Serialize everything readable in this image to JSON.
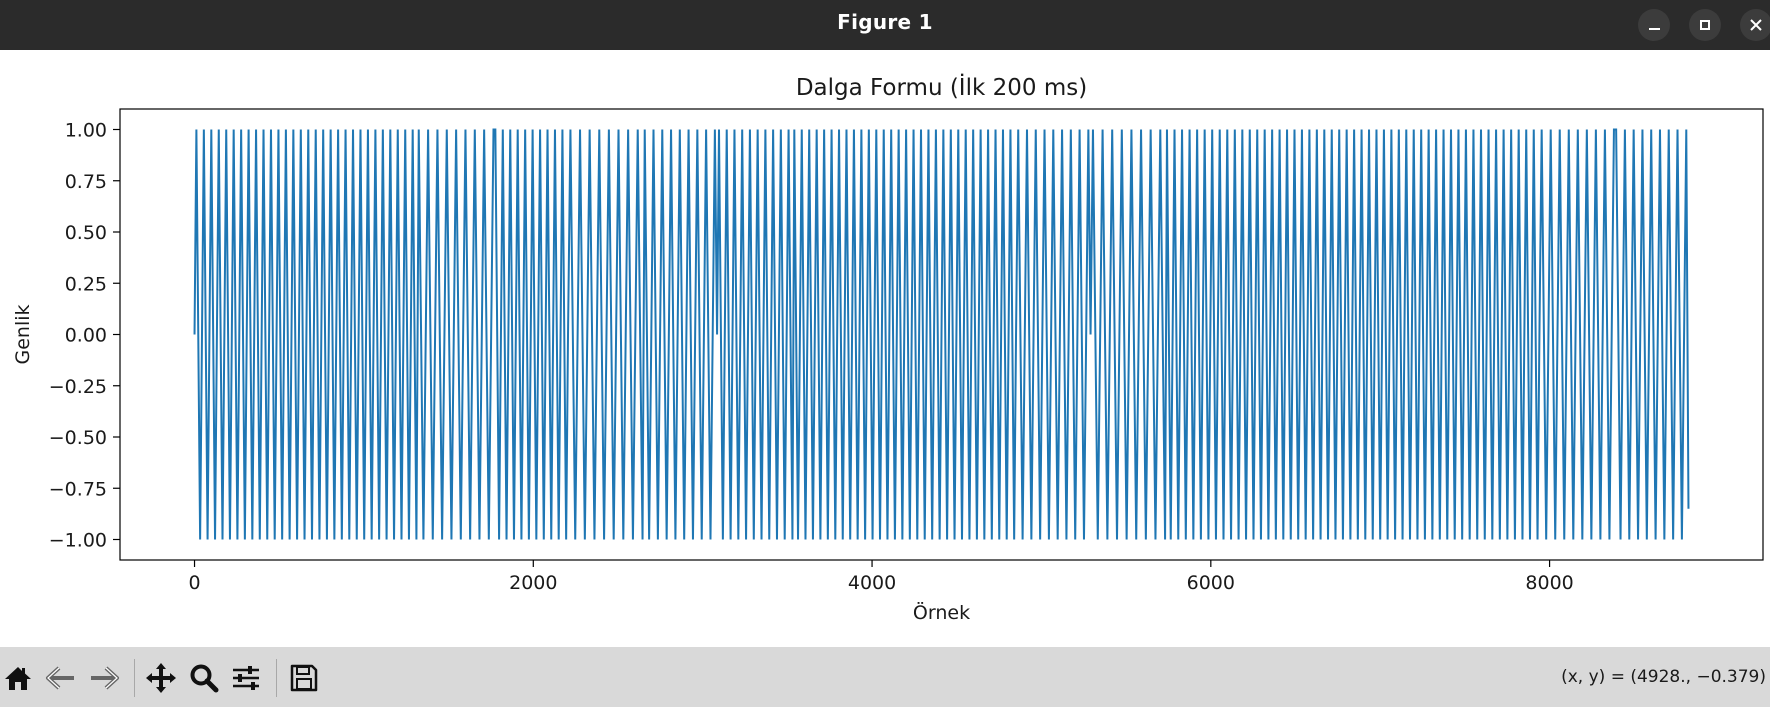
{
  "window": {
    "title": "Figure 1",
    "controls": [
      "minimize-icon",
      "maximize-icon",
      "close-icon"
    ]
  },
  "chart_data": {
    "type": "line",
    "title": "Dalga Formu (İlk 200 ms)",
    "xlabel": "Örnek",
    "ylabel": "Genlik",
    "xlim": [
      -440,
      9260
    ],
    "ylim": [
      -1.1,
      1.1
    ],
    "xticks": [
      0,
      2000,
      4000,
      6000,
      8000
    ],
    "xtick_labels": [
      "0",
      "2000",
      "4000",
      "6000",
      "8000"
    ],
    "yticks": [
      1.0,
      0.75,
      0.5,
      0.25,
      0.0,
      -0.25,
      -0.5,
      -0.75,
      -1.0
    ],
    "ytick_labels": [
      "1.00",
      "0.75",
      "0.50",
      "0.25",
      "0.00",
      "−0.25",
      "−0.50",
      "−0.75",
      "−1.00"
    ],
    "grid": false,
    "series": [
      {
        "color": "#1f77b4",
        "x_start": 0,
        "x_end": 8820,
        "y_start": 0.0,
        "y_end": -0.85,
        "segments": [
          {
            "x_start": 0,
            "x_end": 1310,
            "cycles": 29.75
          },
          {
            "x_start": 1310,
            "x_end": 1765,
            "cycles": 8.25
          },
          {
            "x_start": 1765,
            "x_end": 2205,
            "cycles": 10.0
          },
          {
            "x_start": 2205,
            "x_end": 2645,
            "cycles": 7.75
          },
          {
            "x_start": 2645,
            "x_end": 3085,
            "cycles": 8.5
          },
          {
            "x_start": 3085,
            "x_end": 3530,
            "cycles": 9.75
          },
          {
            "x_start": 3530,
            "x_end": 3970,
            "cycles": 10.0
          },
          {
            "x_start": 3970,
            "x_end": 4410,
            "cycles": 10.0
          },
          {
            "x_start": 4410,
            "x_end": 4850,
            "cycles": 10.0
          },
          {
            "x_start": 4850,
            "x_end": 5290,
            "cycles": 8.5
          },
          {
            "x_start": 5290,
            "x_end": 5730,
            "cycles": 7.75
          },
          {
            "x_start": 5730,
            "x_end": 6175,
            "cycles": 10.0
          },
          {
            "x_start": 6175,
            "x_end": 6615,
            "cycles": 10.0
          },
          {
            "x_start": 6615,
            "x_end": 7055,
            "cycles": 10.0
          },
          {
            "x_start": 7055,
            "x_end": 7495,
            "cycles": 10.0
          },
          {
            "x_start": 7495,
            "x_end": 7940,
            "cycles": 10.0
          },
          {
            "x_start": 7940,
            "x_end": 8380,
            "cycles": 8.25
          },
          {
            "x_start": 8380,
            "x_end": 8820,
            "cycles": 8.5
          }
        ]
      }
    ]
  },
  "toolbar": {
    "buttons": [
      "home-icon",
      "back-icon",
      "forward-icon",
      "pan-icon",
      "zoom-icon",
      "configure-subplots-icon",
      "save-icon"
    ],
    "coords": "(x, y) = (4928., −0.379)"
  }
}
